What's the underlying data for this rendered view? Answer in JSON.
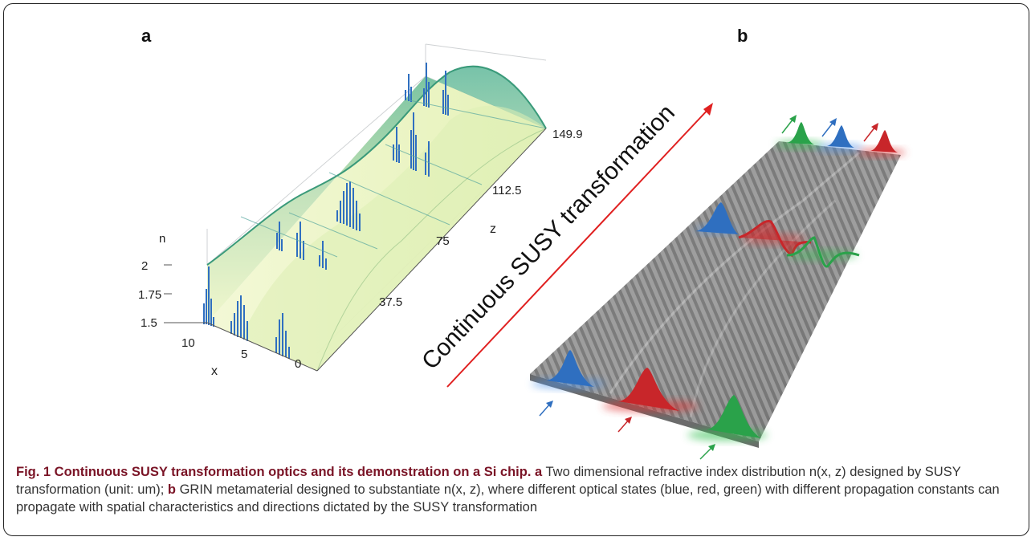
{
  "figure": {
    "panel_a_label": "a",
    "panel_b_label": "b",
    "panel_a": {
      "n_axis_label": "n",
      "n_ticks": [
        "2",
        "1.75",
        "1.5"
      ],
      "x_axis_label": "x",
      "x_ticks": [
        "10",
        "5",
        "0"
      ],
      "z_axis_label": "z",
      "z_ticks": [
        "37.5",
        "75",
        "112.5",
        "149.9"
      ]
    },
    "panel_b": {
      "arrow_text": "Continuous SUSY transformation"
    },
    "colors": {
      "surface_green": "#5fb89a",
      "surface_yellow": "#eaf4b8",
      "mode_blue": "#2f6fc0",
      "mode_red": "#c8262a",
      "mode_green": "#2aa24a",
      "arrow_red": "#e02020"
    }
  },
  "caption": {
    "title": "Fig. 1 Continuous SUSY transformation optics and its demonstration on a Si chip.",
    "a_label": "a",
    "a_text": " Two dimensional refractive index distribution n(x, z) designed by SUSY transformation (unit: um); ",
    "b_label": "b",
    "b_text": " GRIN metamaterial designed to substantiate n(x, z), where different optical states (blue, red, green) with different propagation constants can propagate with spatial characteristics and directions dictated by the SUSY transformation"
  }
}
